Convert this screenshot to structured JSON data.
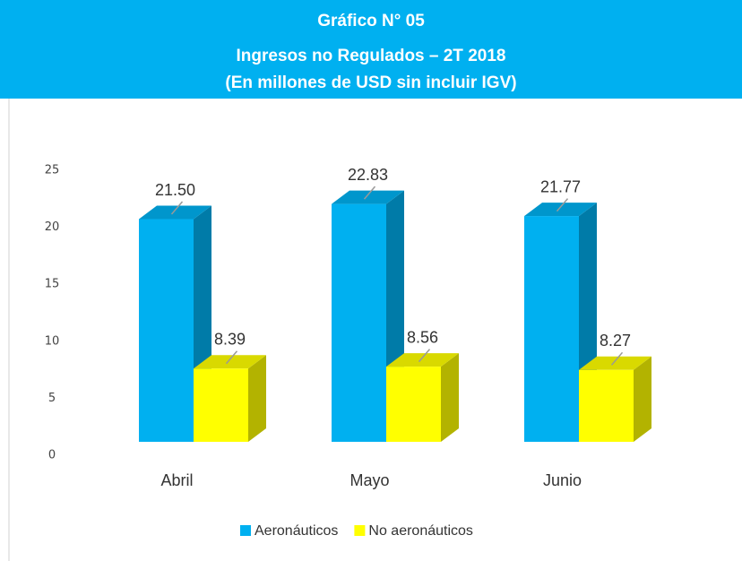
{
  "chart_data": {
    "type": "bar3d",
    "title": [
      "Gráfico N° 05",
      "Ingresos no Regulados – 2T 2018",
      "(En millones de USD  sin incluir IGV)"
    ],
    "categories": [
      "Abril",
      "Mayo",
      "Junio"
    ],
    "series": [
      {
        "name": "Aeronáuticos",
        "color": "#00b0f0",
        "values": [
          21.5,
          22.83,
          21.77
        ],
        "value_labels": [
          "21.50",
          "22.83",
          "21.77"
        ]
      },
      {
        "name": "No aeronáuticos",
        "color": "#ffff00",
        "values": [
          8.39,
          8.56,
          8.27
        ]
      }
    ],
    "ylim": [
      0,
      25
    ],
    "yticks": [
      0,
      5,
      10,
      15,
      20,
      25
    ],
    "legend": "bottom"
  }
}
